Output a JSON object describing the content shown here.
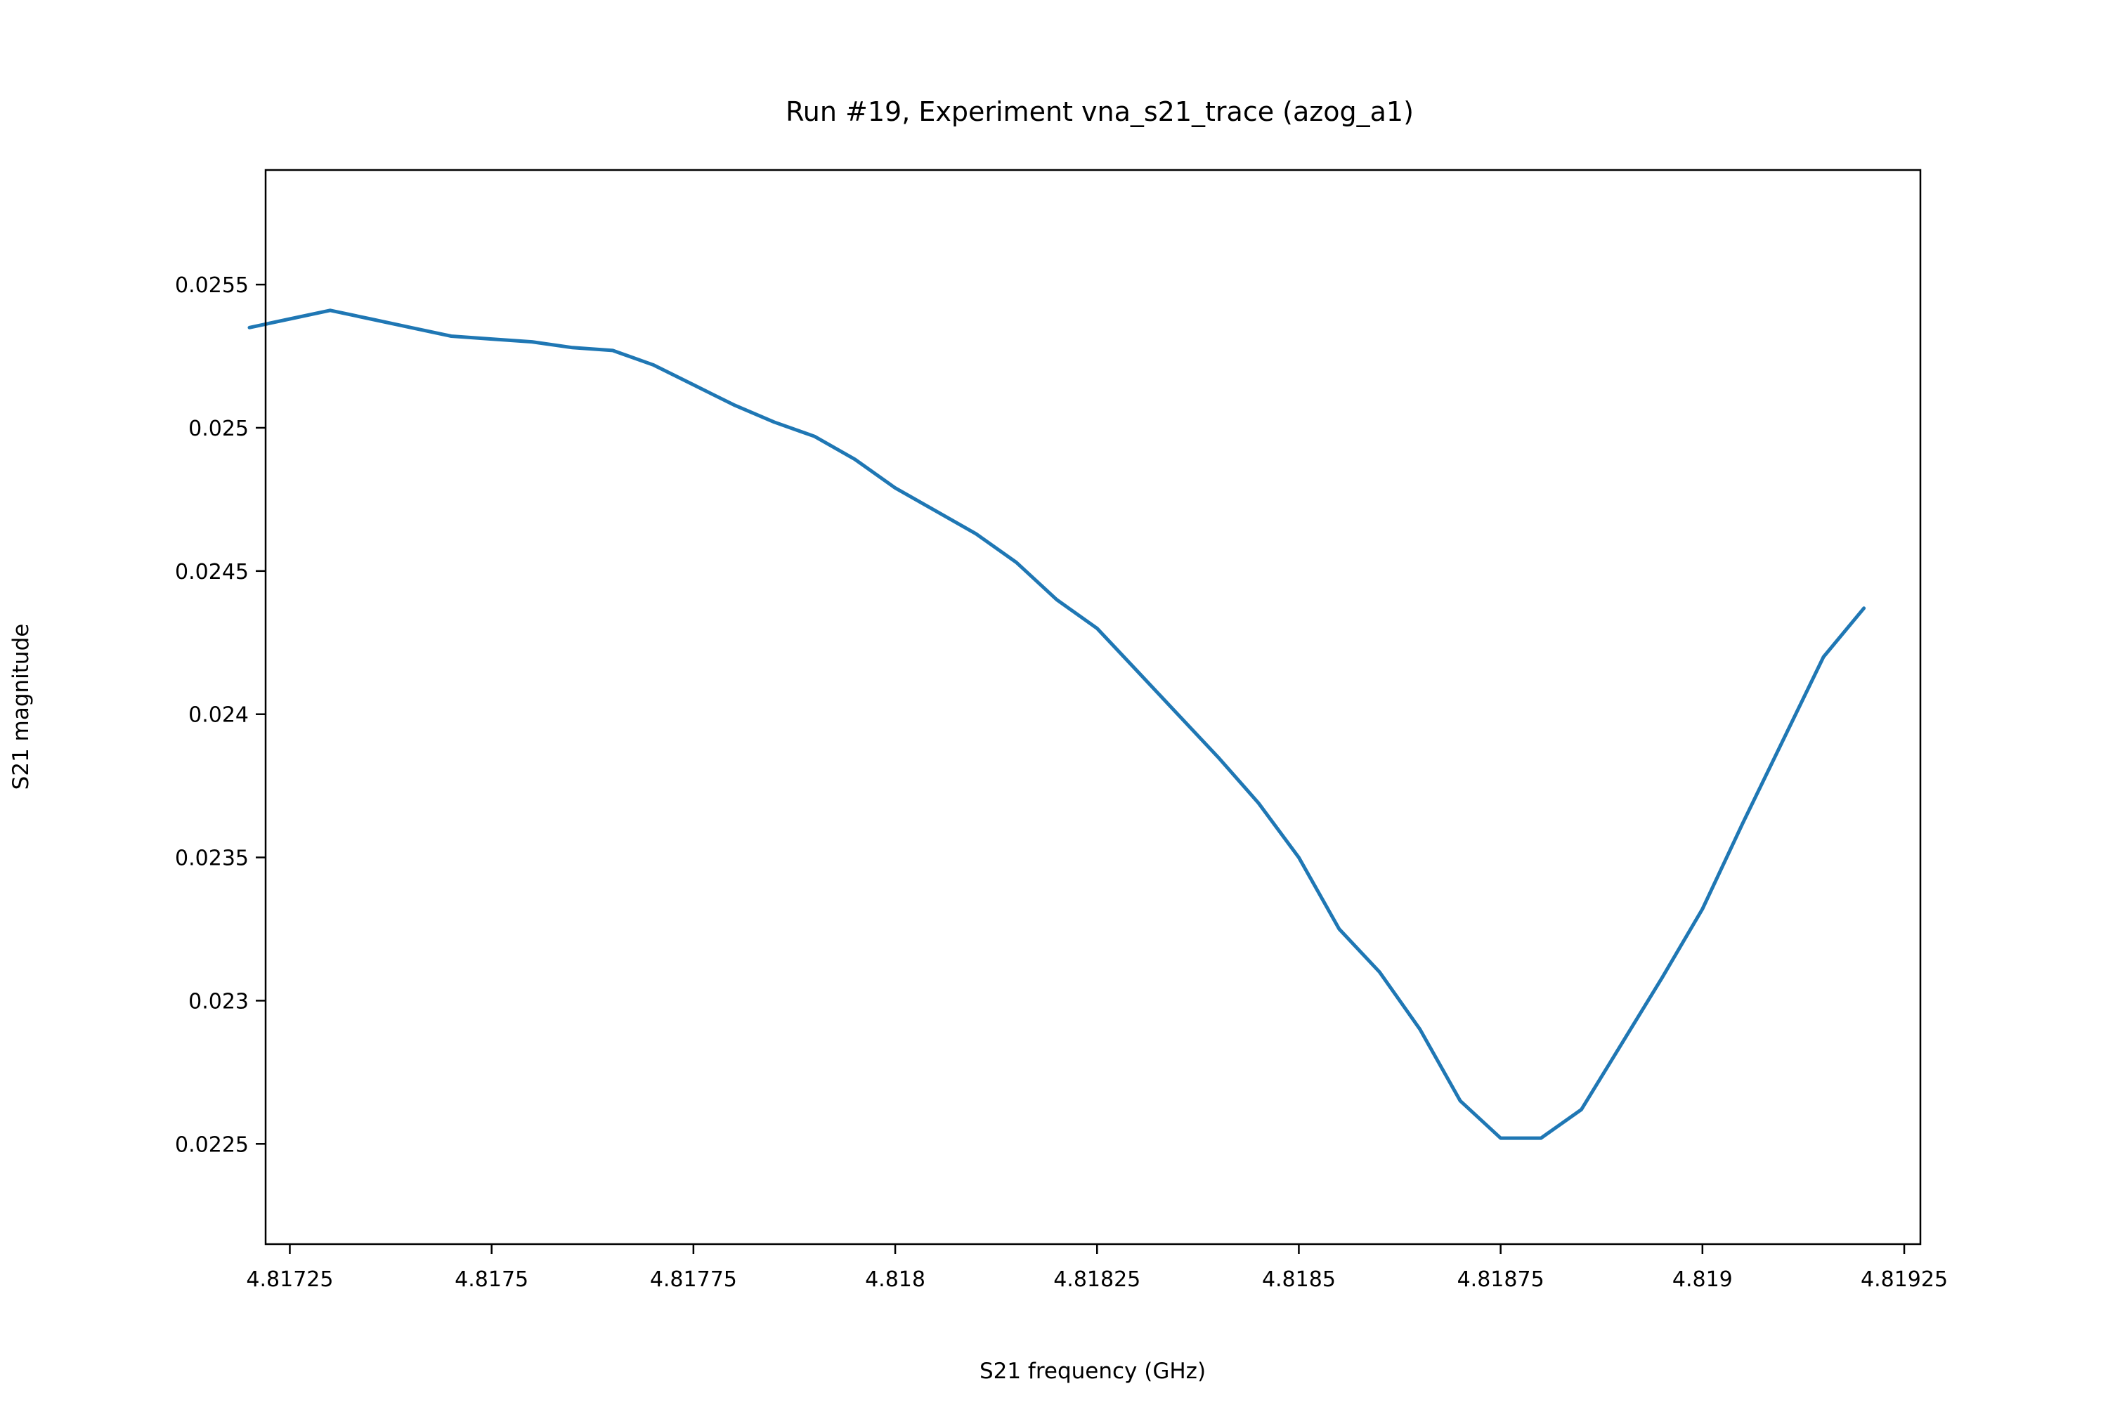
{
  "chart_data": {
    "type": "line",
    "title": "Run #19, Experiment vna_s21_trace (azog_a1)",
    "xlabel": "S21 frequency (GHz)",
    "ylabel": "S21 magnitude",
    "xlim": [
      4.81722,
      4.81927
    ],
    "ylim": [
      0.02215,
      0.0259
    ],
    "x_ticks": [
      4.81725,
      4.8175,
      4.81775,
      4.818,
      4.81825,
      4.8185,
      4.81875,
      4.819,
      4.81925
    ],
    "x_tick_labels": [
      "4.81725",
      "4.8175",
      "4.81775",
      "4.818",
      "4.81825",
      "4.8185",
      "4.81875",
      "4.819",
      "4.81925"
    ],
    "y_ticks": [
      0.0225,
      0.023,
      0.0235,
      0.024,
      0.0245,
      0.025,
      0.0255
    ],
    "y_tick_labels": [
      "0.0225",
      "0.023",
      "0.0235",
      "0.024",
      "0.0245",
      "0.025",
      "0.0255"
    ],
    "grid": false,
    "legend": "none",
    "series": [
      {
        "color": "#1f77b4",
        "x": [
          4.8172,
          4.81725,
          4.8173,
          4.81735,
          4.8174,
          4.81745,
          4.8175,
          4.81755,
          4.8176,
          4.81765,
          4.8177,
          4.81775,
          4.8178,
          4.81785,
          4.8179,
          4.81795,
          4.818,
          4.81805,
          4.8181,
          4.81815,
          4.8182,
          4.81825,
          4.8183,
          4.81835,
          4.8184,
          4.81845,
          4.8185,
          4.81855,
          4.8186,
          4.81865,
          4.8187,
          4.81875,
          4.8188,
          4.81885,
          4.8189,
          4.81895,
          4.819,
          4.81905,
          4.8191,
          4.81915,
          4.8192
        ],
        "y": [
          0.02535,
          0.02538,
          0.02541,
          0.02538,
          0.02535,
          0.02532,
          0.02531,
          0.0253,
          0.02528,
          0.02527,
          0.02522,
          0.02515,
          0.02508,
          0.02502,
          0.02497,
          0.02489,
          0.02479,
          0.02471,
          0.02463,
          0.02453,
          0.0244,
          0.0243,
          0.02415,
          0.024,
          0.02385,
          0.02369,
          0.0235,
          0.02325,
          0.0231,
          0.0229,
          0.02265,
          0.02252,
          0.02252,
          0.02262,
          0.02285,
          0.02308,
          0.02332,
          0.02362,
          0.02391,
          0.0242,
          0.02437
        ]
      }
    ]
  }
}
